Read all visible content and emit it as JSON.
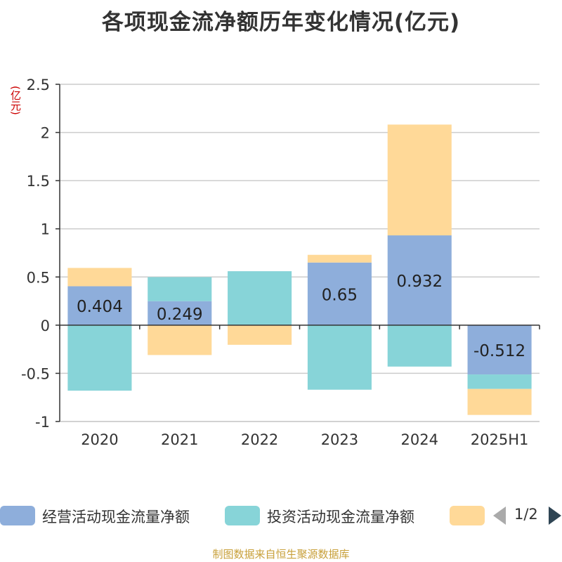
{
  "chart_data": {
    "type": "bar",
    "stacked": true,
    "title": "各项现金流净额历年变化情况(亿元)",
    "unit_label": "(亿元)",
    "categories": [
      "2020",
      "2021",
      "2022",
      "2023",
      "2024",
      "2025H1"
    ],
    "ylim": [
      -1,
      2.5
    ],
    "yticks": [
      2.5,
      2,
      1.5,
      1,
      0.5,
      0,
      -0.5,
      -1
    ],
    "ytick_labels": [
      "2.5",
      "2",
      "1.5",
      "1",
      "0.5",
      "0",
      "-0.5",
      "-1"
    ],
    "grid": true,
    "legend_position": "bottom",
    "series": [
      {
        "name": "经营活动现金流量净额",
        "color": "#8eaedb",
        "values": [
          0.404,
          0.249,
          -0.004,
          0.65,
          0.932,
          -0.512
        ],
        "labels": [
          "0.404",
          "0.249",
          "",
          "0.65",
          "0.932",
          "-0.512"
        ]
      },
      {
        "name": "投资活动现金流量净额",
        "color": "#87d4d8",
        "values": [
          -0.68,
          0.25,
          0.56,
          -0.67,
          -0.43,
          -0.15
        ]
      },
      {
        "name": "",
        "color": "#ffd998",
        "values": [
          0.19,
          -0.31,
          -0.2,
          0.08,
          1.15,
          -0.27
        ]
      }
    ]
  },
  "legend": {
    "page_text": "1/2"
  },
  "footer": {
    "source": "制图数据来自恒生聚源数据库"
  }
}
